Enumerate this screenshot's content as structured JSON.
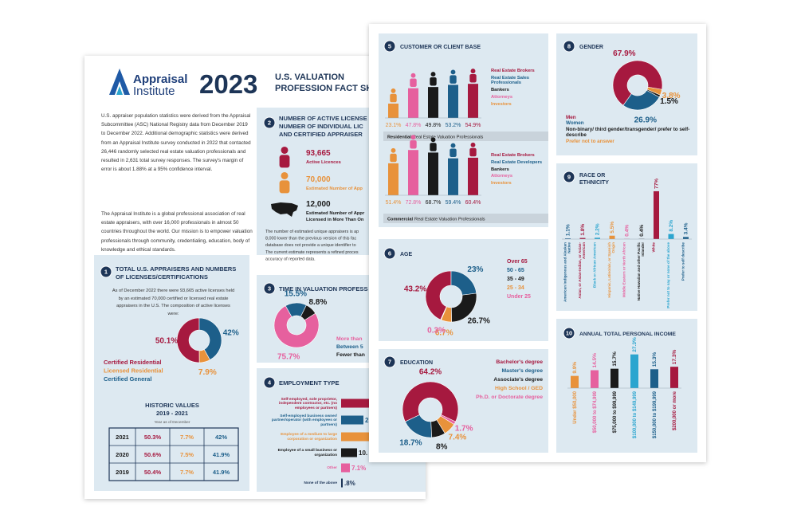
{
  "back_page": {
    "logo": [
      "Appraisal",
      "Institute"
    ],
    "year": "2023",
    "title": [
      "U.S. VALUATION",
      "PROFESSION FACT SHE"
    ],
    "intro": [
      "U.S. appraiser population statistics were derived from the Appraisal Subcommittee (ASC) National Registry data from December 2019 to December 2022. Additional demographic statistics were derived from an Appraisal Institute survey conducted in 2022 that contacted 26,446 randomly selected real estate valuation professionals and resulted in 2,631 total survey responses. The survey's margin of error is about 1.88% at a 95% confidence interval.",
      "The Appraisal Institute is a global professional association of real estate appraisers, with over 16,000 professionals in almost 50 countries throughout the world. Our mission is to empower valuation professionals through community, credentialing, education, body of knowledge and ethical standards."
    ],
    "licenses": {
      "number": "1",
      "title": "TOTAL U.S. APPRAISERS AND NUMBERS OF LICENSES/CERTIFICATIONS",
      "text": "As of December 2022 there were 93,665 active licenses held by an estimated 70,000 certified or licensed real estate appraisers in the U.S. The composition of active licenses were:",
      "chart": {
        "type": "donut",
        "categories": [
          "Certified Residential",
          "Licensed Residential",
          "Certified General"
        ],
        "values": [
          50.1,
          7.9,
          42
        ],
        "value_labels": [
          "50.1%",
          "7.9%",
          "42%"
        ],
        "colors": [
          "#a6193f",
          "#e8923b",
          "#1d5f8a"
        ]
      },
      "historic": {
        "title": "HISTORIC VALUES",
        "years": "2019 - 2021",
        "note": "Year as of December",
        "rows": [
          [
            "2021",
            "50.3%",
            "7.7%",
            "42%"
          ],
          [
            "2020",
            "50.6%",
            "7.5%",
            "41.9%"
          ],
          [
            "2019",
            "50.4%",
            "7.7%",
            "41.9%"
          ]
        ]
      }
    },
    "active_licenses": {
      "number": "2",
      "title": [
        "NUMBER OF ACTIVE LICENSE",
        "NUMBER OF INDIVIDUAL LIC",
        "AND CERTIFIED APPRAISER"
      ],
      "stats": [
        {
          "value": "93,665",
          "label": [
            "Active Licences"
          ]
        },
        {
          "value": "70,000",
          "label": [
            "Estimated Number of App"
          ]
        },
        {
          "value": "12,000",
          "label": [
            "Estimated Number of Appr",
            "Licensed in More Than On"
          ]
        }
      ],
      "note": [
        "The number of estimated unique appraisers is ap",
        "8,000 lower than the previous version of this fac",
        "database does not provide a unique identifier to",
        "The current estimate represents a refined proces",
        "accuracy of reported data."
      ]
    },
    "time": {
      "number": "3",
      "title": "TIME IN VALUATION PROFESS",
      "chart": {
        "type": "donut",
        "categories": [
          "More than",
          "Between 5",
          "Fewer than"
        ],
        "values": [
          75.7,
          15.5,
          8.8
        ],
        "value_labels": [
          "75.7%",
          "15.5%",
          "8.8%"
        ],
        "colors": [
          "#e6609e",
          "#1d5f8a",
          "#1a1a1a"
        ]
      }
    },
    "employment": {
      "number": "4",
      "title": "EMPLOYMENT TYPE",
      "items": [
        {
          "label": "Self-employed, sole proprietor, independent contractor, etc. (no employees or partners)"
        },
        {
          "label": "Self-employed business owner/ partner/operator (with employees or partners)",
          "shown": "2"
        },
        {
          "label": "Employee of a medium to large corporation or organization"
        },
        {
          "label": "Employee of a small business or organization",
          "shown": "10."
        },
        {
          "label": "Other",
          "shown": "7.1%"
        },
        {
          "label": "None of the above",
          "shown": ".8%"
        }
      ]
    }
  },
  "front_page": {
    "clients": {
      "number": "5",
      "title": "CUSTOMER OR CLIENT BASE",
      "residential": {
        "type": "bar",
        "legend": [
          "Real Estate Brokers",
          "Real Estate Sales Professionals",
          "Bankers",
          "Attorneys",
          "Investors"
        ],
        "legend_colors": [
          "#a6193f",
          "#1d5f8a",
          "#1a1a1a",
          "#e6609e",
          "#e8923b"
        ],
        "values": [
          23.1,
          47.8,
          49.8,
          53.2,
          54.9
        ],
        "value_labels": [
          "23.1%",
          "47.8%",
          "49.8%",
          "53.2%",
          "54.9%"
        ],
        "colors": [
          "#e8923b",
          "#e6609e",
          "#1a1a1a",
          "#1d5f8a",
          "#a6193f"
        ],
        "caption_bold": "Residential",
        "caption": "Real Estate Valuation Professionals"
      },
      "commercial": {
        "type": "bar",
        "legend": [
          "Real Estate Brokers",
          "Real Estate Developers",
          "Bankers",
          "Attorneys",
          "Investors"
        ],
        "legend_colors": [
          "#a6193f",
          "#1d5f8a",
          "#1a1a1a",
          "#e6609e",
          "#e8923b"
        ],
        "values": [
          51.4,
          72.8,
          68.7,
          59.4,
          60.4
        ],
        "value_labels": [
          "51.4%",
          "72.8%",
          "68.7%",
          "59.4%",
          "60.4%"
        ],
        "colors": [
          "#e8923b",
          "#e6609e",
          "#1a1a1a",
          "#1d5f8a",
          "#a6193f"
        ],
        "caption_bold": "Commercial",
        "caption": "Real Estate Valuation Professionals"
      }
    },
    "age": {
      "number": "6",
      "title": "AGE",
      "chart": {
        "type": "donut",
        "categories": [
          "Over 65",
          "50 - 65",
          "35 - 49",
          "25 - 34",
          "Under 25"
        ],
        "values": [
          43.2,
          23,
          26.7,
          6.7,
          0.3
        ],
        "value_labels": [
          "43.2%",
          "23%",
          "26.7%",
          "6.7%",
          "0.3%"
        ],
        "colors": [
          "#a6193f",
          "#1d5f8a",
          "#1a1a1a",
          "#e8923b",
          "#e6609e"
        ]
      }
    },
    "education": {
      "number": "7",
      "title": "EDUCATION",
      "chart": {
        "type": "donut",
        "categories": [
          "Bachelor's degree",
          "Master's degree",
          "Associate's degree",
          "High School / GED",
          "Ph.D. or Doctorate degree"
        ],
        "values": [
          64.2,
          18.7,
          8,
          7.4,
          1.7
        ],
        "value_labels": [
          "64.2%",
          "18.7%",
          "8%",
          "7.4%",
          "1.7%"
        ],
        "colors": [
          "#a6193f",
          "#1d5f8a",
          "#1a1a1a",
          "#e8923b",
          "#e6609e"
        ]
      }
    },
    "gender": {
      "number": "8",
      "title": "GENDER",
      "chart": {
        "type": "donut",
        "categories": [
          "Men",
          "Women",
          "Non-binary/ third gender/transgender/ prefer to self-describe",
          "Prefer not to answer"
        ],
        "values": [
          67.9,
          26.9,
          1.5,
          3.8
        ],
        "value_labels": [
          "67.9%",
          "26.9%",
          "1.5%",
          "3.8%"
        ],
        "colors": [
          "#a6193f",
          "#1d5f8a",
          "#1a1a1a",
          "#e8923b"
        ]
      }
    },
    "race": {
      "number": "9",
      "title": "RACE OR ETHNICITY",
      "chart": {
        "type": "bar",
        "categories": [
          "American Indigenous and Alaskan Native",
          "Asian, or Asian-Indian, or Asian-American",
          "Black or African American",
          "Hispanic, Latino/a/x, or Spanish Origin",
          "Middle Eastern or North African",
          "Native Hawaiian and other Pacific Islander",
          "White",
          "Prefer not to say or none of the above",
          "Prefer to self describe"
        ],
        "values": [
          1.1,
          1.8,
          2.2,
          5.5,
          0.4,
          0.4,
          77,
          8.2,
          3.4
        ],
        "value_labels": [
          "1.1%",
          "1.8%",
          "2.2%",
          "5.5%",
          "0.4%",
          "0.4%",
          "77%",
          "8.2%",
          "3.4%"
        ],
        "colors": [
          "#1d5f8a",
          "#a6193f",
          "#2ba5cf",
          "#e8923b",
          "#e6609e",
          "#1a1a1a",
          "#a6193f",
          "#2ba5cf",
          "#1d5f8a"
        ]
      }
    },
    "income": {
      "number": "10",
      "title": "ANNUAL TOTAL PERSONAL INCOME",
      "chart": {
        "type": "bar",
        "categories": [
          "Under $50,000",
          "$50,000 to $74,999",
          "$75,000 to $99,999",
          "$100,000 to $149,999",
          "$150,000 to $199,999",
          "$200,000 or more"
        ],
        "values": [
          9.9,
          14.5,
          15.7,
          27.3,
          15.3,
          17.3
        ],
        "value_labels": [
          "9.9%",
          "14.5%",
          "15.7%",
          "27.3%",
          "15.3%",
          "17.3%"
        ],
        "colors": [
          "#e8923b",
          "#e6609e",
          "#1a1a1a",
          "#2ba5cf",
          "#1d5f8a",
          "#a6193f"
        ]
      }
    }
  }
}
